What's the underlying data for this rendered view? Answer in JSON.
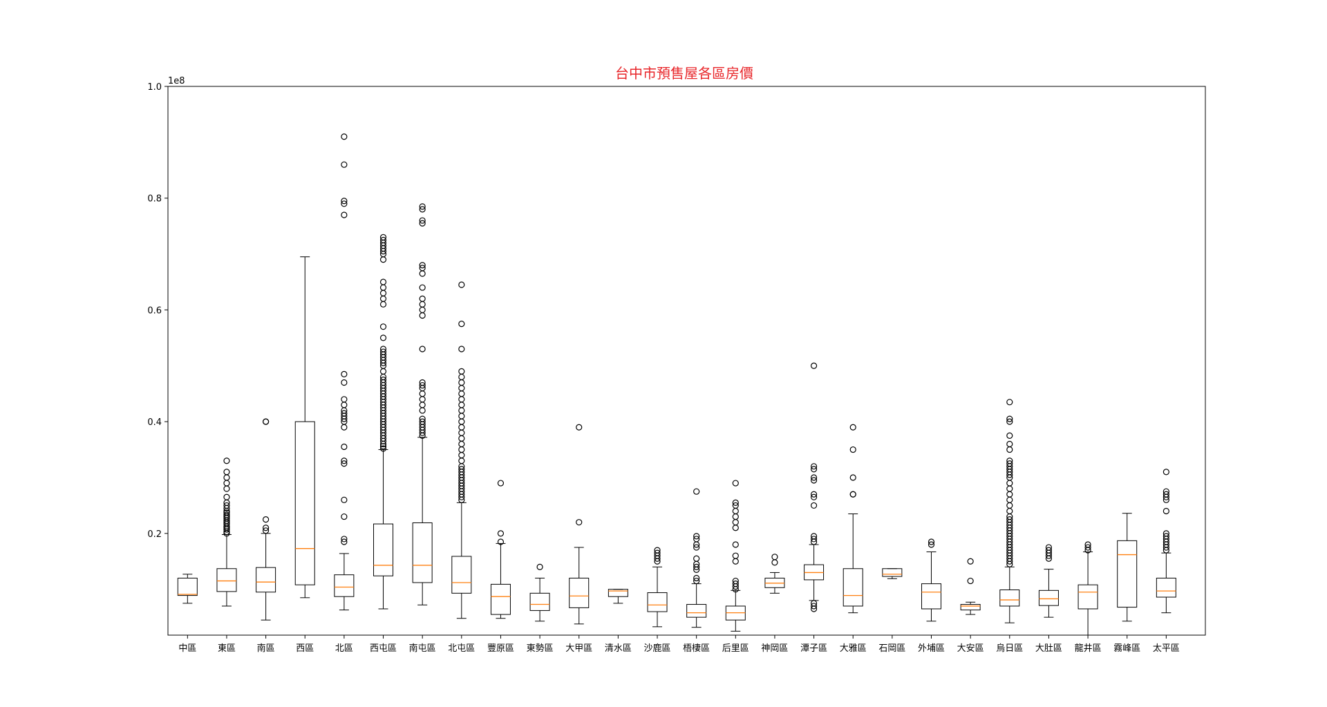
{
  "chart_data": {
    "type": "boxplot",
    "title": "台中市預售屋各區房價",
    "title_color": "#e8262a",
    "y_offset_label": "1e8",
    "xlabel": "",
    "ylabel": "",
    "ylim": [
      0.018,
      1.0
    ],
    "y_ticks": [
      0.2,
      0.4,
      0.6,
      0.8,
      1.0
    ],
    "y_tick_labels": [
      "0.2",
      "0.4",
      "0.6",
      "0.8",
      "1.0"
    ],
    "grid": false,
    "median_color": "#ff7f0e",
    "box_color": "#000000",
    "categories": [
      "中區",
      "東區",
      "南區",
      "西區",
      "北區",
      "西屯區",
      "南屯區",
      "北屯區",
      "豐原區",
      "東勢區",
      "大甲區",
      "清水區",
      "沙鹿區",
      "梧棲區",
      "后里區",
      "神岡區",
      "潭子區",
      "大雅區",
      "石岡區",
      "外埔區",
      "大安區",
      "烏日區",
      "大肚區",
      "龍井區",
      "霧峰區",
      "太平區"
    ],
    "boxes": [
      {
        "whislo": 0.075,
        "q1": 0.089,
        "med": 0.091,
        "q3": 0.12,
        "whishi": 0.127,
        "fliers": []
      },
      {
        "whislo": 0.07,
        "q1": 0.096,
        "med": 0.115,
        "q3": 0.137,
        "whishi": 0.198,
        "fliers": [
          0.2,
          0.203,
          0.207,
          0.21,
          0.213,
          0.217,
          0.22,
          0.223,
          0.227,
          0.23,
          0.233,
          0.237,
          0.24,
          0.245,
          0.25,
          0.255,
          0.265,
          0.28,
          0.29,
          0.3,
          0.31,
          0.33
        ]
      },
      {
        "whislo": 0.045,
        "q1": 0.095,
        "med": 0.113,
        "q3": 0.139,
        "whishi": 0.2,
        "fliers": [
          0.205,
          0.21,
          0.225,
          0.4,
          0.4
        ]
      },
      {
        "whislo": 0.085,
        "q1": 0.108,
        "med": 0.173,
        "q3": 0.4,
        "whishi": 0.695,
        "fliers": []
      },
      {
        "whislo": 0.063,
        "q1": 0.087,
        "med": 0.104,
        "q3": 0.126,
        "whishi": 0.164,
        "fliers": [
          0.185,
          0.19,
          0.23,
          0.26,
          0.325,
          0.33,
          0.355,
          0.39,
          0.4,
          0.405,
          0.41,
          0.415,
          0.42,
          0.43,
          0.44,
          0.47,
          0.485,
          0.77,
          0.79,
          0.795,
          0.86,
          0.91
        ]
      },
      {
        "whislo": 0.065,
        "q1": 0.124,
        "med": 0.143,
        "q3": 0.217,
        "whishi": 0.35,
        "fliers": [
          0.352,
          0.356,
          0.36,
          0.365,
          0.37,
          0.375,
          0.38,
          0.385,
          0.39,
          0.395,
          0.4,
          0.405,
          0.41,
          0.415,
          0.42,
          0.425,
          0.43,
          0.435,
          0.44,
          0.445,
          0.45,
          0.455,
          0.46,
          0.465,
          0.47,
          0.475,
          0.48,
          0.49,
          0.5,
          0.505,
          0.51,
          0.515,
          0.52,
          0.525,
          0.53,
          0.55,
          0.57,
          0.61,
          0.62,
          0.63,
          0.64,
          0.65,
          0.69,
          0.7,
          0.705,
          0.71,
          0.715,
          0.72,
          0.725,
          0.73
        ]
      },
      {
        "whislo": 0.072,
        "q1": 0.112,
        "med": 0.143,
        "q3": 0.219,
        "whishi": 0.372,
        "fliers": [
          0.375,
          0.38,
          0.385,
          0.39,
          0.395,
          0.4,
          0.405,
          0.42,
          0.43,
          0.44,
          0.45,
          0.46,
          0.465,
          0.47,
          0.53,
          0.59,
          0.6,
          0.61,
          0.62,
          0.64,
          0.665,
          0.675,
          0.68,
          0.755,
          0.76,
          0.78,
          0.785
        ]
      },
      {
        "whislo": 0.048,
        "q1": 0.093,
        "med": 0.112,
        "q3": 0.159,
        "whishi": 0.255,
        "fliers": [
          0.26,
          0.265,
          0.27,
          0.275,
          0.28,
          0.285,
          0.29,
          0.295,
          0.3,
          0.305,
          0.31,
          0.315,
          0.32,
          0.33,
          0.34,
          0.35,
          0.36,
          0.37,
          0.38,
          0.39,
          0.4,
          0.41,
          0.42,
          0.43,
          0.44,
          0.45,
          0.46,
          0.47,
          0.48,
          0.49,
          0.53,
          0.575,
          0.645
        ]
      },
      {
        "whislo": 0.048,
        "q1": 0.055,
        "med": 0.087,
        "q3": 0.109,
        "whishi": 0.182,
        "fliers": [
          0.185,
          0.2,
          0.29
        ]
      },
      {
        "whislo": 0.043,
        "q1": 0.062,
        "med": 0.073,
        "q3": 0.093,
        "whishi": 0.12,
        "fliers": [
          0.14
        ]
      },
      {
        "whislo": 0.038,
        "q1": 0.067,
        "med": 0.088,
        "q3": 0.12,
        "whishi": 0.175,
        "fliers": [
          0.22,
          0.39
        ]
      },
      {
        "whislo": 0.075,
        "q1": 0.087,
        "med": 0.097,
        "q3": 0.1,
        "whishi": 0.1,
        "fliers": []
      },
      {
        "whislo": 0.033,
        "q1": 0.06,
        "med": 0.072,
        "q3": 0.094,
        "whishi": 0.14,
        "fliers": [
          0.15,
          0.155,
          0.16,
          0.165,
          0.17
        ]
      },
      {
        "whislo": 0.032,
        "q1": 0.05,
        "med": 0.058,
        "q3": 0.073,
        "whishi": 0.11,
        "fliers": [
          0.115,
          0.12,
          0.135,
          0.14,
          0.145,
          0.155,
          0.175,
          0.18,
          0.19,
          0.195,
          0.275
        ]
      },
      {
        "whislo": 0.025,
        "q1": 0.045,
        "med": 0.058,
        "q3": 0.07,
        "whishi": 0.098,
        "fliers": [
          0.1,
          0.105,
          0.11,
          0.115,
          0.15,
          0.16,
          0.18,
          0.21,
          0.22,
          0.23,
          0.24,
          0.25,
          0.255,
          0.29
        ]
      },
      {
        "whislo": 0.093,
        "q1": 0.103,
        "med": 0.111,
        "q3": 0.12,
        "whishi": 0.13,
        "fliers": [
          0.148,
          0.158
        ]
      },
      {
        "whislo": 0.08,
        "q1": 0.117,
        "med": 0.13,
        "q3": 0.144,
        "whishi": 0.18,
        "fliers": [
          0.065,
          0.07,
          0.075,
          0.185,
          0.19,
          0.195,
          0.25,
          0.265,
          0.27,
          0.295,
          0.3,
          0.315,
          0.32,
          0.5
        ]
      },
      {
        "whislo": 0.058,
        "q1": 0.07,
        "med": 0.089,
        "q3": 0.137,
        "whishi": 0.235,
        "fliers": [
          0.27,
          0.27,
          0.3,
          0.35,
          0.39
        ]
      },
      {
        "whislo": 0.119,
        "q1": 0.123,
        "med": 0.127,
        "q3": 0.137,
        "whishi": 0.137,
        "fliers": []
      },
      {
        "whislo": 0.043,
        "q1": 0.065,
        "med": 0.095,
        "q3": 0.11,
        "whishi": 0.167,
        "fliers": [
          0.18,
          0.185
        ]
      },
      {
        "whislo": 0.055,
        "q1": 0.063,
        "med": 0.07,
        "q3": 0.073,
        "whishi": 0.077,
        "fliers": [
          0.115,
          0.15
        ]
      },
      {
        "whislo": 0.04,
        "q1": 0.07,
        "med": 0.081,
        "q3": 0.099,
        "whishi": 0.14,
        "fliers": [
          0.145,
          0.15,
          0.155,
          0.16,
          0.165,
          0.17,
          0.175,
          0.18,
          0.185,
          0.19,
          0.195,
          0.2,
          0.205,
          0.21,
          0.215,
          0.22,
          0.225,
          0.23,
          0.24,
          0.25,
          0.26,
          0.27,
          0.28,
          0.29,
          0.3,
          0.305,
          0.31,
          0.315,
          0.32,
          0.325,
          0.33,
          0.35,
          0.36,
          0.375,
          0.4,
          0.405,
          0.435
        ]
      },
      {
        "whislo": 0.05,
        "q1": 0.071,
        "med": 0.083,
        "q3": 0.098,
        "whishi": 0.136,
        "fliers": [
          0.155,
          0.16,
          0.165,
          0.17,
          0.175
        ]
      },
      {
        "whislo": 0.018,
        "q1": 0.065,
        "med": 0.095,
        "q3": 0.108,
        "whishi": 0.167,
        "fliers": [
          0.17,
          0.175,
          0.18
        ]
      },
      {
        "whislo": 0.043,
        "q1": 0.068,
        "med": 0.162,
        "q3": 0.187,
        "whishi": 0.236,
        "fliers": []
      },
      {
        "whislo": 0.058,
        "q1": 0.086,
        "med": 0.097,
        "q3": 0.12,
        "whishi": 0.165,
        "fliers": [
          0.17,
          0.175,
          0.18,
          0.185,
          0.19,
          0.195,
          0.2,
          0.24,
          0.26,
          0.265,
          0.27,
          0.275,
          0.31
        ]
      }
    ]
  }
}
